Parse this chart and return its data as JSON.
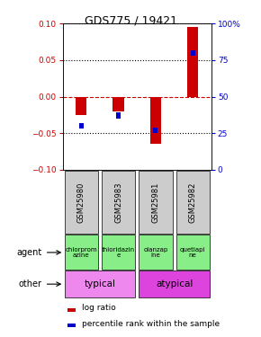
{
  "title": "GDS775 / 19421",
  "samples": [
    "GSM25980",
    "GSM25983",
    "GSM25981",
    "GSM25982"
  ],
  "log_ratios": [
    -0.025,
    -0.02,
    -0.065,
    0.095
  ],
  "percentile_ranks": [
    30,
    37,
    27,
    80
  ],
  "ylim_left": [
    -0.1,
    0.1
  ],
  "ylim_right": [
    0,
    100
  ],
  "yticks_left": [
    -0.1,
    -0.05,
    0.0,
    0.05,
    0.1
  ],
  "yticks_right": [
    0,
    25,
    50,
    75,
    100
  ],
  "yticklabels_right": [
    "0",
    "25",
    "50",
    "75",
    "100%"
  ],
  "log_color": "#cc0000",
  "pct_color": "#0000cc",
  "agent_labels": [
    "chlorprom\nazine",
    "thioridazin\ne",
    "olanzap\nine",
    "quetiapi\nne"
  ],
  "agent_color": "#88ee88",
  "other_typical_label": "typical",
  "other_atypical_label": "atypical",
  "typical_color": "#ee88ee",
  "atypical_color": "#dd44dd",
  "sample_bg_color": "#cccccc",
  "legend_log": "log ratio",
  "legend_pct": "percentile rank within the sample",
  "left_label_color": "#cc0000",
  "right_label_color": "#0000cc",
  "bar_width": 0.3,
  "pct_bar_width": 0.12,
  "pct_bar_height": 0.008
}
